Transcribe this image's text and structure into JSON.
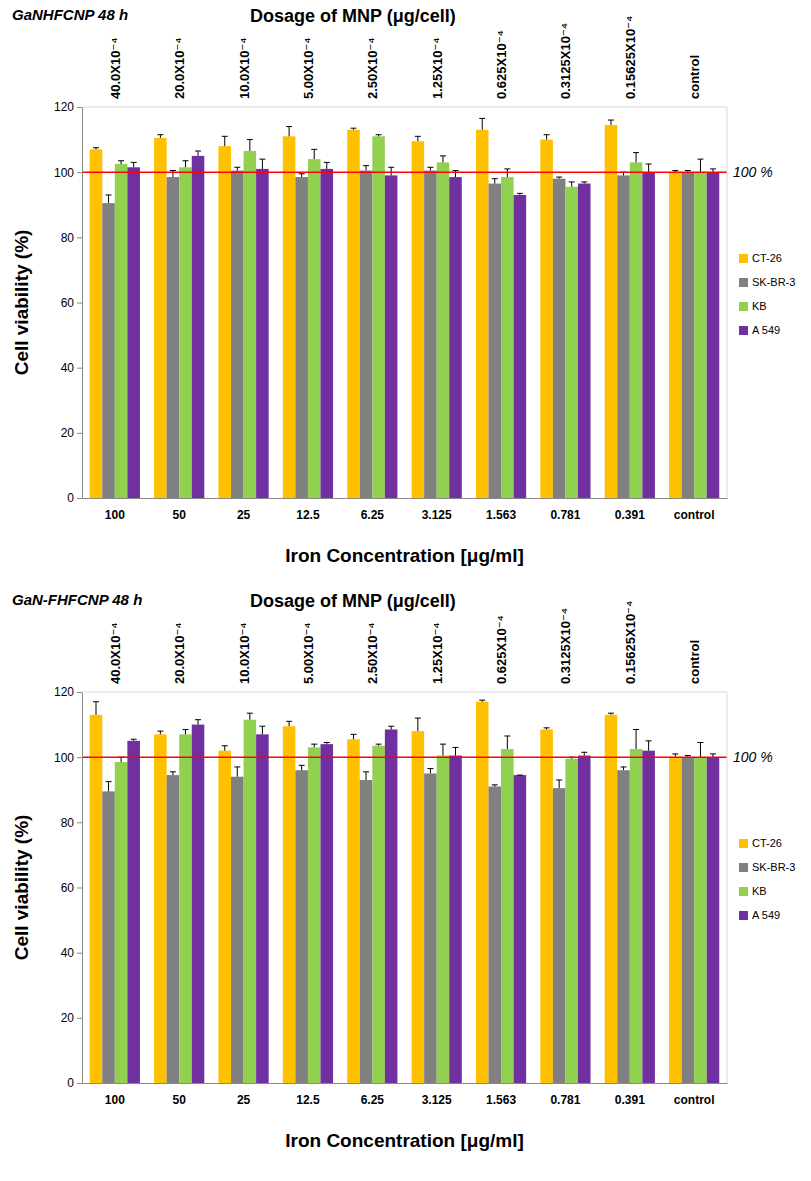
{
  "chart_data": [
    {
      "type": "bar",
      "title": "GaNHFCNP  48 h",
      "x2_title": "Dosage of MNP (μg/cell)",
      "x2_labels": [
        "40.0X10⁻⁴",
        "20.0X10⁻⁴",
        "10.0X10⁻⁴",
        "5.00X10⁻⁴",
        "2.50X10⁻⁴",
        "1.25X10⁻⁴",
        "0.625X10⁻⁴",
        "0.3125X10⁻⁴",
        "0.15625X10⁻⁴",
        "control"
      ],
      "x_label": "Iron Concentration [μg/ml]",
      "y_label": "Cell viability (%)",
      "categories": [
        "100",
        "50",
        "25",
        "12.5",
        "6.25",
        "3.125",
        "1.563",
        "0.781",
        "0.391",
        "control"
      ],
      "series": [
        {
          "name": "CT-26",
          "color": "#ffc000",
          "values": [
            107,
            110.5,
            108,
            111,
            113,
            109.5,
            113,
            110,
            114.5,
            100
          ],
          "errors": [
            0.5,
            1,
            3,
            3,
            0.5,
            1.5,
            3.5,
            1.5,
            1.5,
            0.5
          ]
        },
        {
          "name": "SK-BR-3",
          "color": "#808080",
          "values": [
            90.5,
            98.5,
            100.5,
            98.5,
            100.5,
            100.5,
            96.5,
            98,
            99,
            100
          ],
          "errors": [
            2.5,
            2,
            1,
            1,
            1.5,
            1,
            1.5,
            0.5,
            1,
            0.5
          ]
        },
        {
          "name": "KB",
          "color": "#92d050",
          "values": [
            102.5,
            101.5,
            106.5,
            104,
            111,
            103,
            98.5,
            95.5,
            103,
            100
          ],
          "errors": [
            1,
            2,
            3.5,
            3,
            0.5,
            2,
            2.5,
            1.5,
            3,
            4
          ]
        },
        {
          "name": "A 549",
          "color": "#7030a0",
          "values": [
            101.5,
            105,
            101,
            101,
            99,
            98.5,
            93,
            96.5,
            100,
            100
          ],
          "errors": [
            1.5,
            1.5,
            3,
            2,
            2.5,
            2,
            0.5,
            0.5,
            2.5,
            1
          ]
        }
      ],
      "ylim": [
        0,
        120
      ],
      "yticks": [
        0,
        20,
        40,
        60,
        80,
        100,
        120
      ],
      "reference_line": {
        "value": 100,
        "label": "100 %",
        "color": "#ff0000"
      },
      "grid": false,
      "legend": "right"
    },
    {
      "type": "bar",
      "title": "GaN-FHFCNP  48 h",
      "x2_title": "Dosage of MNP (μg/cell)",
      "x2_labels": [
        "40.0X10⁻⁴",
        "20.0X10⁻⁴",
        "10.0X10⁻⁴",
        "5.00X10⁻⁴",
        "2.50X10⁻⁴",
        "1.25X10⁻⁴",
        "0.625X10⁻⁴",
        "0.3125X10⁻⁴",
        "0.15625X10⁻⁴",
        "control"
      ],
      "x_label": "Iron Concentration [μg/ml]",
      "y_label": "Cell viability (%)",
      "categories": [
        "100",
        "50",
        "25",
        "12.5",
        "6.25",
        "3.125",
        "1.563",
        "0.781",
        "0.391",
        "control"
      ],
      "series": [
        {
          "name": "CT-26",
          "color": "#ffc000",
          "values": [
            113,
            107,
            102,
            109.5,
            105.5,
            108,
            117,
            108.5,
            113,
            100
          ],
          "errors": [
            4,
            1,
            1.5,
            1.5,
            1.5,
            4,
            0.5,
            0.5,
            0.5,
            1
          ]
        },
        {
          "name": "SK-BR-3",
          "color": "#808080",
          "values": [
            89.5,
            94.5,
            94,
            96,
            93,
            95,
            91,
            90.5,
            96,
            100
          ],
          "errors": [
            3,
            1,
            3,
            1.5,
            2.5,
            1.5,
            0.5,
            2.5,
            1,
            0.5
          ]
        },
        {
          "name": "KB",
          "color": "#92d050",
          "values": [
            98.5,
            107,
            111.5,
            103,
            103.5,
            100.5,
            102.5,
            99.5,
            102.5,
            100
          ],
          "errors": [
            1.5,
            1.5,
            2,
            1,
            0.5,
            3.5,
            4,
            0.5,
            6,
            4.5
          ]
        },
        {
          "name": "A 549",
          "color": "#7030a0",
          "values": [
            105,
            110,
            107,
            104,
            108.5,
            100.5,
            94.5,
            100.5,
            102,
            100
          ],
          "errors": [
            0.5,
            1.5,
            2.5,
            0.5,
            1,
            2.5,
            0,
            1,
            3,
            1
          ]
        }
      ],
      "ylim": [
        0,
        120
      ],
      "yticks": [
        0,
        20,
        40,
        60,
        80,
        100,
        120
      ],
      "reference_line": {
        "value": 100,
        "label": "100 %",
        "color": "#ff0000"
      },
      "grid": false,
      "legend": "right"
    }
  ]
}
